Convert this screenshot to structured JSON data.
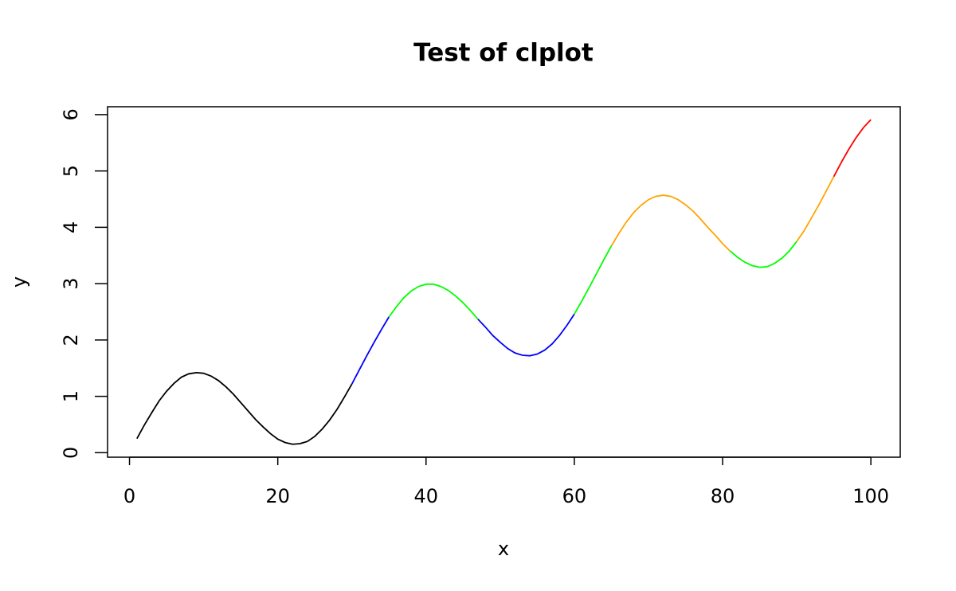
{
  "chart_data": {
    "type": "line",
    "title": "Test of clplot",
    "x_label": "x",
    "y_label": "y",
    "xlim": [
      -2.96,
      103.96
    ],
    "ylim": [
      -0.08,
      6.14
    ],
    "xticks": [
      0,
      20,
      40,
      60,
      80,
      100
    ],
    "yticks": [
      0,
      1,
      2,
      3,
      4,
      5,
      6
    ],
    "series": [
      {
        "color": "#000000",
        "x": [
          1,
          2,
          3,
          4,
          5,
          6,
          7,
          8,
          9,
          10,
          11,
          12,
          13,
          14,
          15,
          16,
          17,
          18,
          19,
          20,
          21,
          22,
          23,
          24,
          25,
          26,
          27,
          28,
          29,
          30
        ],
        "values": [
          0.25,
          0.49,
          0.71,
          0.92,
          1.09,
          1.23,
          1.34,
          1.4,
          1.42,
          1.41,
          1.36,
          1.28,
          1.17,
          1.04,
          0.89,
          0.74,
          0.59,
          0.46,
          0.34,
          0.24,
          0.18,
          0.15,
          0.16,
          0.2,
          0.29,
          0.42,
          0.58,
          0.77,
          0.99,
          1.22
        ]
      },
      {
        "color": "#0000ff",
        "x": [
          30,
          31,
          32,
          33,
          34,
          35
        ],
        "values": [
          1.22,
          1.47,
          1.72,
          1.96,
          2.19,
          2.41
        ]
      },
      {
        "color": "#00ff00",
        "x": [
          35,
          36,
          37,
          38,
          39,
          40,
          41,
          42,
          43,
          44,
          45,
          46,
          47
        ],
        "values": [
          2.41,
          2.59,
          2.75,
          2.87,
          2.95,
          2.99,
          2.99,
          2.95,
          2.88,
          2.78,
          2.66,
          2.52,
          2.37
        ]
      },
      {
        "color": "#0000ff",
        "x": [
          47,
          48,
          49,
          50,
          51,
          52,
          53,
          54,
          55,
          56,
          57,
          58,
          59,
          60
        ],
        "values": [
          2.37,
          2.23,
          2.08,
          1.96,
          1.85,
          1.77,
          1.73,
          1.72,
          1.75,
          1.82,
          1.93,
          2.08,
          2.26,
          2.46
        ]
      },
      {
        "color": "#00ff00",
        "x": [
          60,
          61,
          62,
          63,
          64,
          65
        ],
        "values": [
          2.46,
          2.69,
          2.93,
          3.18,
          3.43,
          3.67
        ]
      },
      {
        "color": "#ffa500",
        "x": [
          65,
          66,
          67,
          68,
          69,
          70,
          71,
          72,
          73,
          74,
          75,
          76,
          77,
          78,
          79,
          80,
          81
        ],
        "values": [
          3.67,
          3.89,
          4.09,
          4.26,
          4.39,
          4.49,
          4.55,
          4.57,
          4.55,
          4.49,
          4.4,
          4.29,
          4.15,
          4.0,
          3.86,
          3.71,
          3.58
        ]
      },
      {
        "color": "#00ff00",
        "x": [
          81,
          82,
          83,
          84,
          85,
          86,
          87,
          88,
          89,
          90
        ],
        "values": [
          3.58,
          3.47,
          3.38,
          3.32,
          3.29,
          3.3,
          3.36,
          3.45,
          3.58,
          3.75
        ]
      },
      {
        "color": "#ffa500",
        "x": [
          90,
          91,
          92,
          93,
          94,
          95
        ],
        "values": [
          3.75,
          3.94,
          4.17,
          4.4,
          4.65,
          4.9
        ]
      },
      {
        "color": "#ff0000",
        "x": [
          95,
          96,
          97,
          98,
          99,
          100
        ],
        "values": [
          4.9,
          5.15,
          5.38,
          5.59,
          5.77,
          5.91
        ]
      }
    ]
  }
}
